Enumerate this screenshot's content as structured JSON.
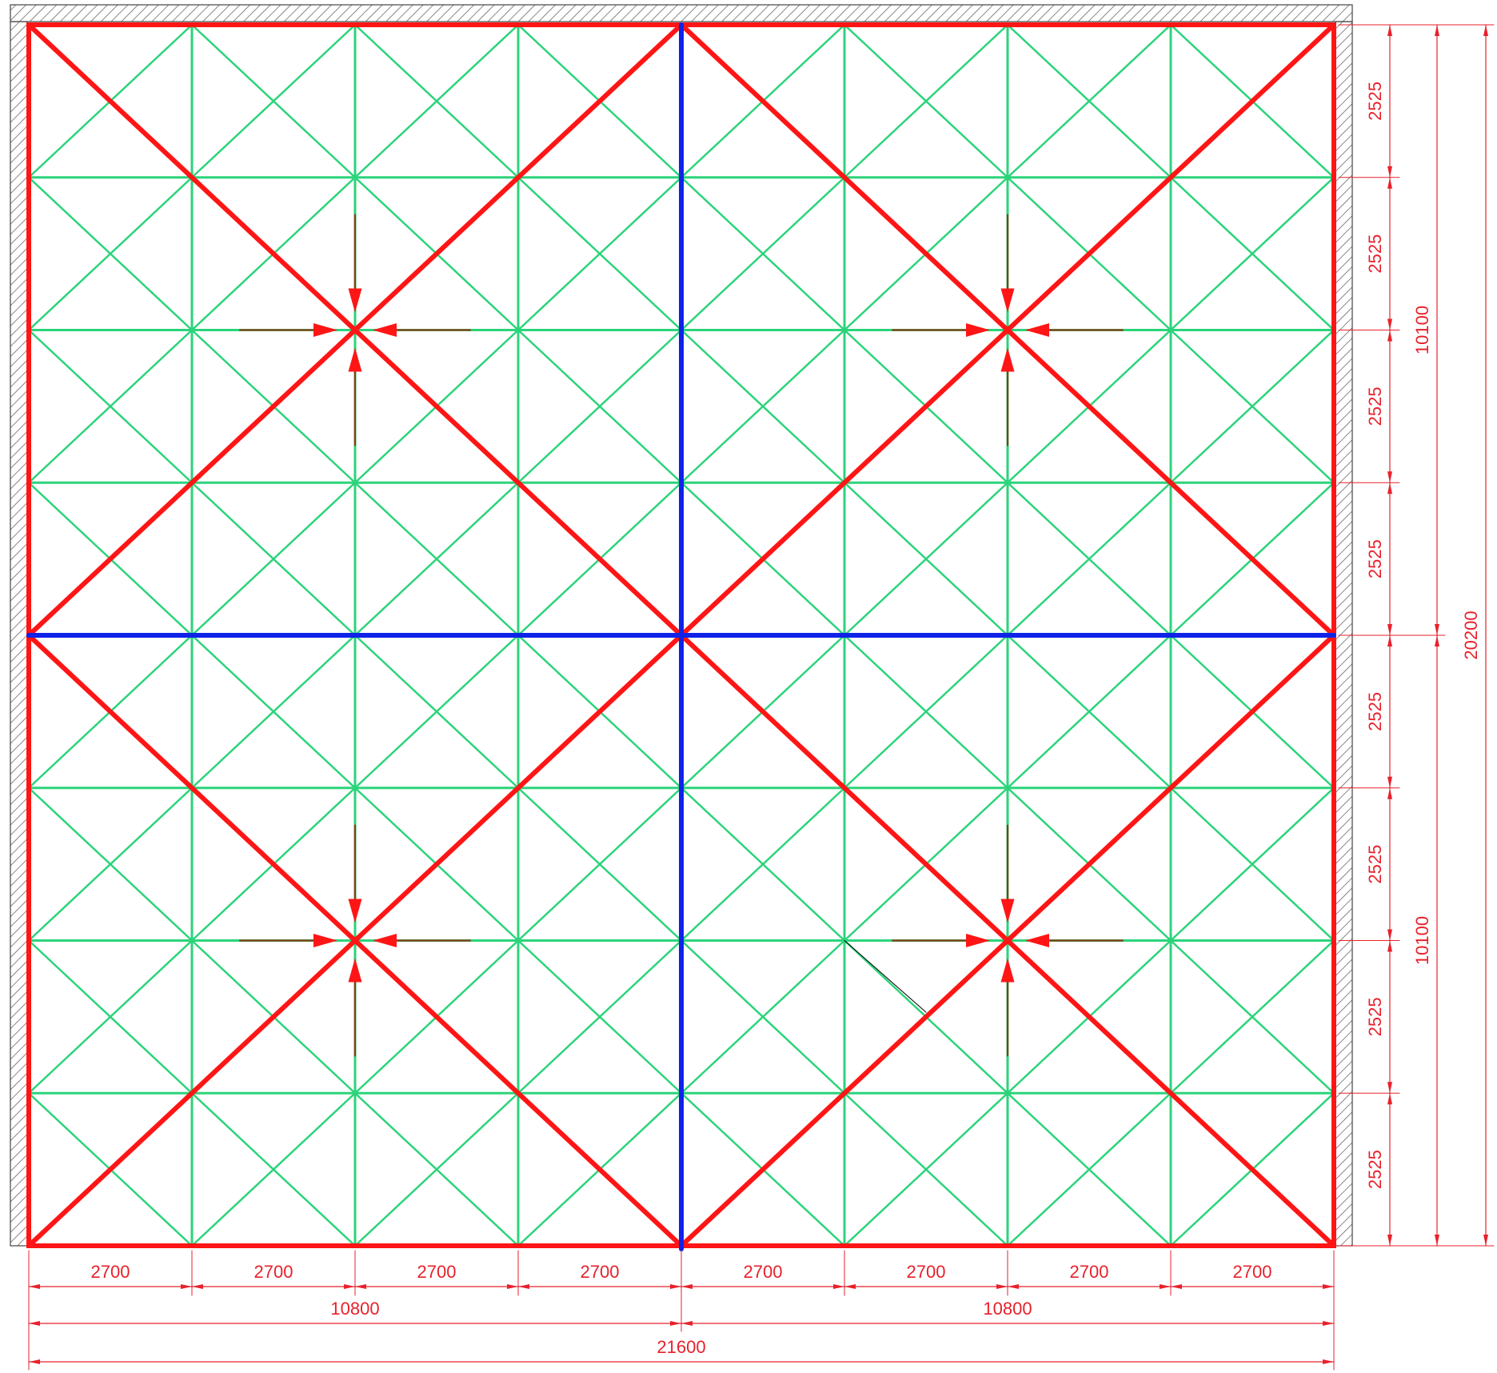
{
  "plan": {
    "width_mm": 21600,
    "height_mm": 20200,
    "column_spacing_mm": 2700,
    "row_spacing_mm": 2525,
    "columns": 8,
    "rows": 8
  },
  "colors": {
    "grid": "#2bd47a",
    "beams": "#ff1515",
    "axes": "#0f23e8",
    "dimensions": "#e8212b",
    "wall_hatch": "#555555",
    "leader": "#000000"
  },
  "dimensions": {
    "bottom": {
      "segments": [
        "2700",
        "2700",
        "2700",
        "2700",
        "2700",
        "2700",
        "2700",
        "2700"
      ],
      "halves": [
        "10800",
        "10800"
      ],
      "total": "21600"
    },
    "right": {
      "segments": [
        "2525",
        "2525",
        "2525",
        "2525",
        "2525",
        "2525",
        "2525",
        "2525"
      ],
      "halves": [
        "10100",
        "10100"
      ],
      "total": "20200"
    }
  },
  "arrow_nodes": [
    {
      "col": 2,
      "row": 2
    },
    {
      "col": 6,
      "row": 2
    },
    {
      "col": 2,
      "row": 6
    },
    {
      "col": 6,
      "row": 6
    }
  ]
}
